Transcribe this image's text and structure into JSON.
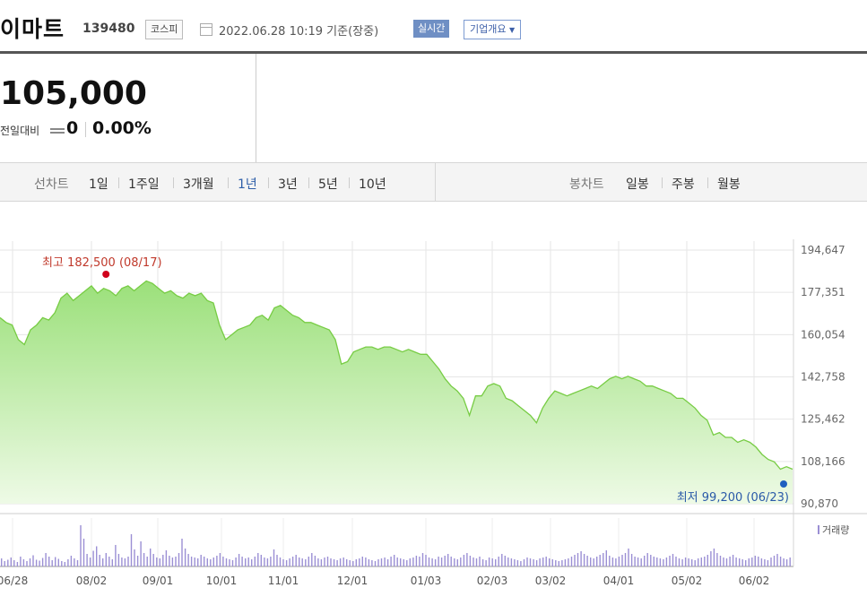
{
  "header": {
    "name": "이마트",
    "code": "139480",
    "market": "코스피",
    "datetime": "2022.06.28 10:19 기준(장중)",
    "realtime_label": "실시간",
    "company_info_label": "기업개요"
  },
  "price": {
    "current": "105,000",
    "change_label": "전일대비",
    "change_value": "0",
    "change_pct": "0.00%"
  },
  "tabs": {
    "line_chart_label": "선차트",
    "periods": [
      "1일",
      "1주일",
      "3개월",
      "1년",
      "3년",
      "5년",
      "10년"
    ],
    "active_period": "1년",
    "candle_label": "봉차트",
    "candles": [
      "일봉",
      "주봉",
      "월봉"
    ]
  },
  "chart_data": {
    "type": "area",
    "ylim": [
      90870,
      194647
    ],
    "y_ticks": [
      "194,647",
      "177,351",
      "160,054",
      "142,758",
      "125,462",
      "108,166",
      "90,870"
    ],
    "x_ticks": [
      "06/28",
      "08/02",
      "09/01",
      "10/01",
      "11/01",
      "12/01",
      "01/03",
      "02/03",
      "03/02",
      "04/01",
      "05/02",
      "06/02"
    ],
    "max_annotation": "최고 182,500 (08/17)",
    "min_annotation": "최저 99,200 (06/23)",
    "volume_label": "거래량",
    "colors": {
      "line": "#77cc44",
      "fill_top": "#9be07a",
      "fill_bottom": "#eefae6",
      "max_point": "#d0021b",
      "min_point": "#1f5fbf",
      "volume": "#9b8fd4"
    },
    "series": [
      {
        "values": [
          167000,
          165000,
          164000,
          158000,
          156000,
          162000,
          164000,
          167000,
          166000,
          169000,
          175000,
          177000,
          174000,
          176000,
          178000,
          180000,
          177000,
          179000,
          178000,
          176000,
          179000,
          180000,
          178000,
          180000,
          182000,
          181000,
          179000,
          177000,
          178000,
          176000,
          175000,
          177000,
          176000,
          177000,
          174000,
          173000,
          164000,
          158000,
          160000,
          162000,
          163000,
          164000,
          167000,
          168000,
          166000,
          171000,
          172000,
          170000,
          168000,
          167000,
          165000,
          165000,
          164000,
          163000,
          162000,
          158000,
          148000,
          149000,
          153000,
          154000,
          155000,
          155000,
          154000,
          155000,
          155000,
          154000,
          153000,
          154000,
          153000,
          152000,
          152000,
          149000,
          146000,
          142000,
          139000,
          137000,
          134000,
          127000,
          135000,
          135000,
          139000,
          140000,
          139000,
          134000,
          133000,
          131000,
          129000,
          127000,
          124000,
          130000,
          134000,
          137000,
          136000,
          135000,
          136000,
          137000,
          138000,
          139000,
          138000,
          140000,
          142000,
          143000,
          142000,
          143000,
          142000,
          141000,
          139000,
          139000,
          138000,
          137000,
          136000,
          134000,
          134000,
          132000,
          130000,
          127000,
          125000,
          119000,
          120000,
          118000,
          118000,
          116000,
          117000,
          116000,
          114000,
          111000,
          109000,
          108000,
          105000,
          106000,
          105000
        ]
      }
    ],
    "volumes": [
      0.18,
      0.12,
      0.15,
      0.2,
      0.14,
      0.1,
      0.22,
      0.16,
      0.12,
      0.18,
      0.25,
      0.15,
      0.13,
      0.19,
      0.3,
      0.22,
      0.14,
      0.21,
      0.17,
      0.12,
      0.1,
      0.16,
      0.24,
      0.18,
      0.14,
      0.92,
      0.62,
      0.28,
      0.2,
      0.35,
      0.45,
      0.26,
      0.18,
      0.3,
      0.22,
      0.16,
      0.48,
      0.28,
      0.2,
      0.18,
      0.22,
      0.72,
      0.38,
      0.24,
      0.56,
      0.3,
      0.22,
      0.4,
      0.28,
      0.2,
      0.18,
      0.26,
      0.36,
      0.24,
      0.2,
      0.22,
      0.3,
      0.62,
      0.4,
      0.28,
      0.22,
      0.2,
      0.18,
      0.26,
      0.22,
      0.18,
      0.16,
      0.2,
      0.24,
      0.3,
      0.22,
      0.18,
      0.16,
      0.14,
      0.2,
      0.28,
      0.22,
      0.18,
      0.2,
      0.16,
      0.22,
      0.3,
      0.26,
      0.2,
      0.18,
      0.22,
      0.38,
      0.26,
      0.2,
      0.16,
      0.14,
      0.18,
      0.22,
      0.26,
      0.2,
      0.18,
      0.16,
      0.22,
      0.3,
      0.24,
      0.18,
      0.16,
      0.2,
      0.22,
      0.18,
      0.16,
      0.14,
      0.18,
      0.2,
      0.16,
      0.14,
      0.12,
      0.16,
      0.18,
      0.22,
      0.2,
      0.16,
      0.14,
      0.12,
      0.16,
      0.18,
      0.2,
      0.16,
      0.22,
      0.26,
      0.2,
      0.18,
      0.16,
      0.14,
      0.18,
      0.2,
      0.24,
      0.22,
      0.3,
      0.26,
      0.2,
      0.18,
      0.16,
      0.22,
      0.2,
      0.24,
      0.28,
      0.22,
      0.18,
      0.16,
      0.2,
      0.26,
      0.3,
      0.24,
      0.2,
      0.18,
      0.22,
      0.16,
      0.14,
      0.2,
      0.18,
      0.16,
      0.22,
      0.28,
      0.24,
      0.2,
      0.18,
      0.16,
      0.14,
      0.12,
      0.16,
      0.2,
      0.18,
      0.16,
      0.14,
      0.18,
      0.2,
      0.22,
      0.18,
      0.16,
      0.14,
      0.12,
      0.14,
      0.16,
      0.18,
      0.22,
      0.26,
      0.3,
      0.34,
      0.28,
      0.24,
      0.2,
      0.18,
      0.22,
      0.26,
      0.3,
      0.36,
      0.24,
      0.2,
      0.18,
      0.22,
      0.26,
      0.3,
      0.4,
      0.28,
      0.22,
      0.2,
      0.18,
      0.24,
      0.3,
      0.26,
      0.22,
      0.2,
      0.18,
      0.16,
      0.2,
      0.24,
      0.28,
      0.22,
      0.18,
      0.16,
      0.2,
      0.18,
      0.16,
      0.14,
      0.18,
      0.2,
      0.22,
      0.26,
      0.34,
      0.4,
      0.3,
      0.24,
      0.2,
      0.18,
      0.22,
      0.26,
      0.2,
      0.18,
      0.16,
      0.14,
      0.18,
      0.2,
      0.24,
      0.22,
      0.18,
      0.16,
      0.14,
      0.2,
      0.24,
      0.28,
      0.22,
      0.18,
      0.16,
      0.2
    ]
  }
}
